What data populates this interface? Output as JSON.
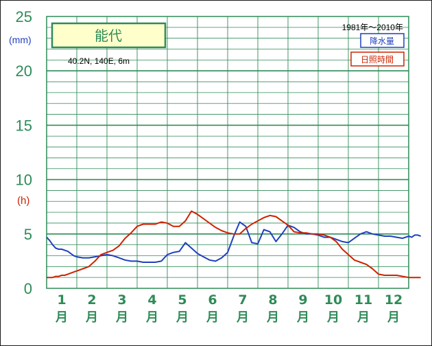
{
  "chart_data": {
    "type": "line",
    "title": "能代",
    "station_info": "40.2N,  140E,  6m",
    "period": "1981年〜2010年",
    "y_ticks": [
      "0",
      "5",
      "10",
      "15",
      "20",
      "25"
    ],
    "ylim": [
      0,
      25
    ],
    "unit_precip": "(mm)",
    "unit_sun": "(h)",
    "month_numbers": [
      "1",
      "2",
      "3",
      "4",
      "5",
      "6",
      "7",
      "8",
      "9",
      "10",
      "11",
      "12"
    ],
    "month_unit": "月",
    "grid": true,
    "legend_position": "top-right",
    "x": [
      0.0,
      0.1,
      0.2,
      0.3,
      0.4,
      0.5,
      0.6,
      0.7,
      0.8,
      0.9,
      1.0,
      1.2,
      1.4,
      1.6,
      1.8,
      2.0,
      2.2,
      2.4,
      2.6,
      2.8,
      3.0,
      3.2,
      3.4,
      3.6,
      3.8,
      4.0,
      4.2,
      4.4,
      4.6,
      4.8,
      5.0,
      5.2,
      5.4,
      5.6,
      5.8,
      6.0,
      6.2,
      6.4,
      6.6,
      6.8,
      7.0,
      7.2,
      7.4,
      7.6,
      7.8,
      8.0,
      8.2,
      8.4,
      8.6,
      8.8,
      9.0,
      9.2,
      9.4,
      9.6,
      9.8,
      10.0,
      10.2,
      10.4,
      10.6,
      10.8,
      11.0,
      11.2,
      11.4,
      11.6,
      11.8,
      12.0,
      12.1,
      12.2,
      12.3,
      12.4
    ],
    "series": [
      {
        "name": "降水量",
        "color": "#1f3fbf",
        "values": [
          4.7,
          4.4,
          4.0,
          3.7,
          3.6,
          3.6,
          3.5,
          3.4,
          3.2,
          3.0,
          2.9,
          2.8,
          2.8,
          2.9,
          3.0,
          3.1,
          3.0,
          2.8,
          2.6,
          2.5,
          2.5,
          2.4,
          2.4,
          2.4,
          2.5,
          3.1,
          3.3,
          3.4,
          4.2,
          3.7,
          3.2,
          2.9,
          2.6,
          2.5,
          2.8,
          3.3,
          4.8,
          6.1,
          5.7,
          4.2,
          4.1,
          5.4,
          5.2,
          4.3,
          5.0,
          5.8,
          5.6,
          5.2,
          5.0,
          5.0,
          4.9,
          4.7,
          4.7,
          4.5,
          4.3,
          4.2,
          4.6,
          5.0,
          5.2,
          5.0,
          4.9,
          4.8,
          4.8,
          4.7,
          4.6,
          4.8,
          4.7,
          4.9,
          4.9,
          4.8
        ]
      },
      {
        "name": "日照時間",
        "color": "#cc2200",
        "values": [
          1.0,
          1.0,
          1.0,
          1.1,
          1.1,
          1.2,
          1.2,
          1.3,
          1.4,
          1.5,
          1.6,
          1.8,
          2.0,
          2.5,
          3.1,
          3.3,
          3.5,
          3.9,
          4.6,
          5.1,
          5.7,
          5.9,
          5.9,
          5.9,
          6.1,
          6.0,
          5.7,
          5.7,
          6.2,
          7.1,
          6.8,
          6.4,
          6.0,
          5.6,
          5.3,
          5.1,
          5.0,
          5.0,
          5.5,
          5.9,
          6.2,
          6.5,
          6.7,
          6.6,
          6.2,
          5.8,
          5.2,
          5.1,
          5.1,
          5.0,
          5.0,
          4.9,
          4.7,
          4.3,
          3.6,
          3.1,
          2.6,
          2.4,
          2.2,
          1.8,
          1.3,
          1.2,
          1.2,
          1.2,
          1.1,
          1.0,
          1.0,
          1.0,
          1.0,
          1.0
        ]
      }
    ]
  }
}
